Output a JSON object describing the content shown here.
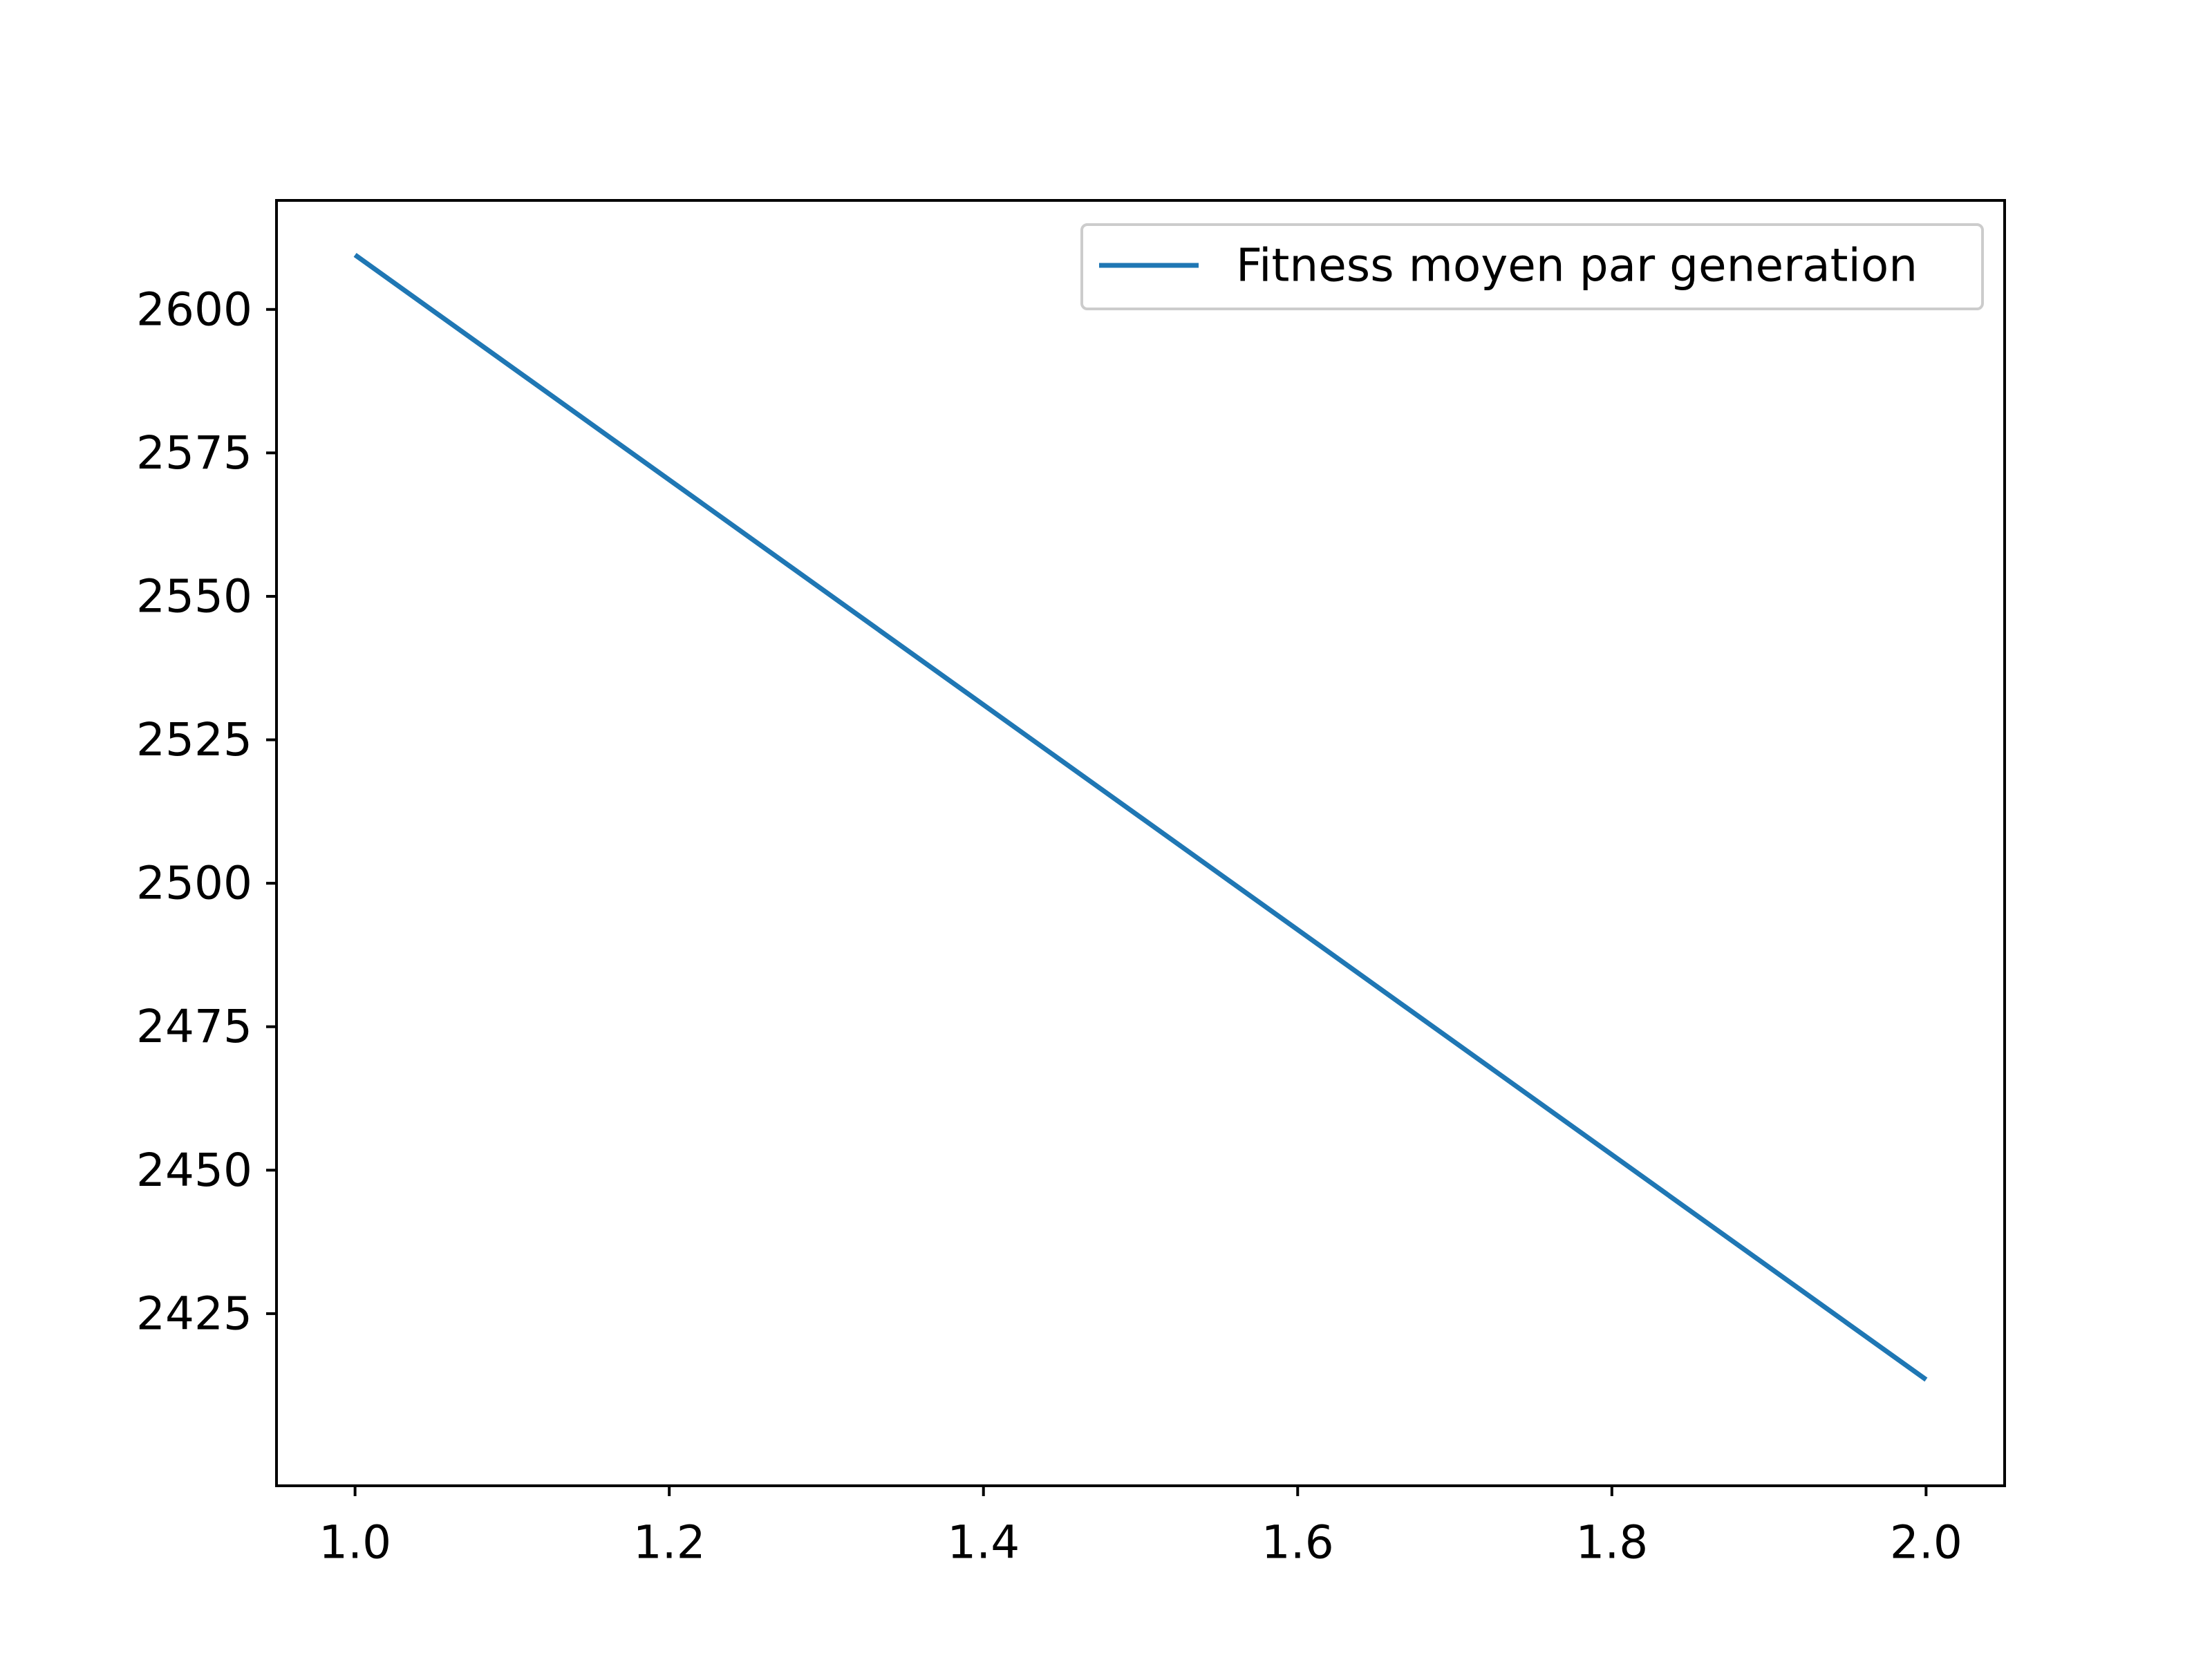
{
  "chart_data": {
    "type": "line",
    "title": "",
    "xlabel": "",
    "ylabel": "",
    "xlim": [
      0.95,
      2.05
    ],
    "ylim": [
      2395,
      2619
    ],
    "x_ticks": [
      "1.0",
      "1.2",
      "1.4",
      "1.6",
      "1.8",
      "2.0"
    ],
    "y_ticks": [
      "2425",
      "2450",
      "2475",
      "2500",
      "2525",
      "2550",
      "2575",
      "2600"
    ],
    "grid": false,
    "legend_position": "top-right",
    "series": [
      {
        "name": "Fitness moyen par generation",
        "color": "#1f77b4",
        "x": [
          1.0,
          2.0
        ],
        "y": [
          2609.5,
          2413.5
        ]
      }
    ]
  }
}
